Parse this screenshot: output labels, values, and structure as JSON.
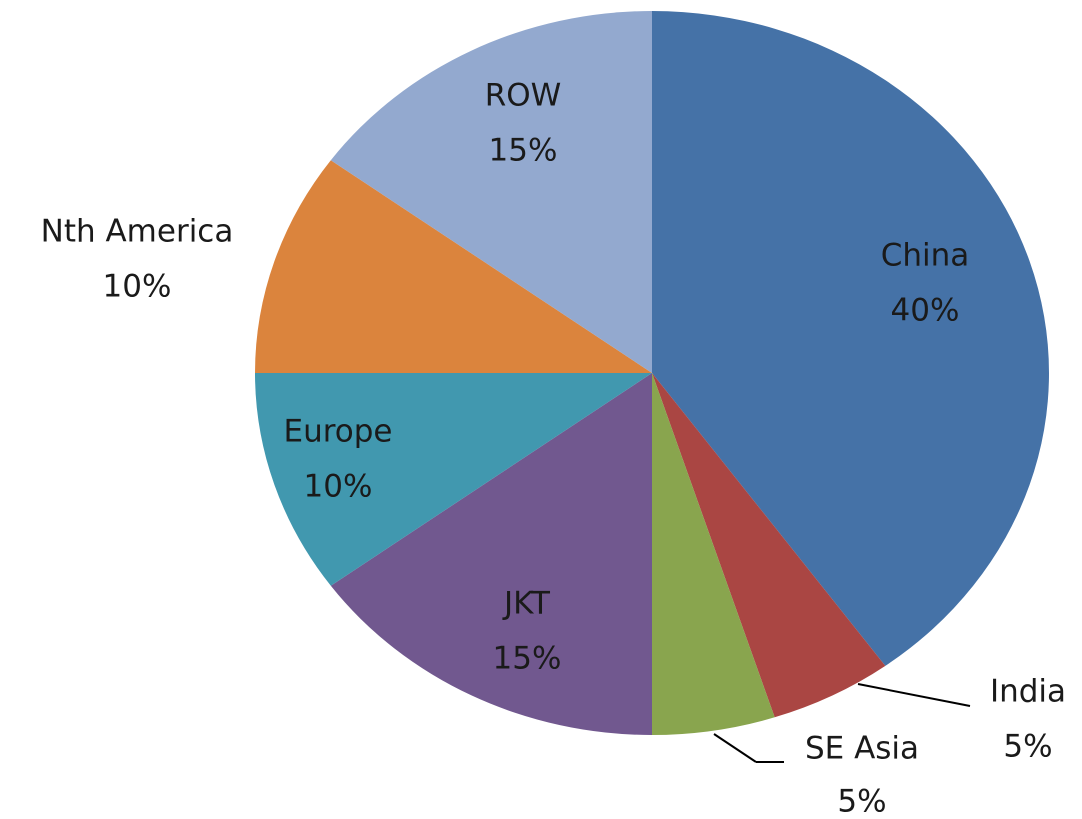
{
  "chart_data": {
    "type": "pie",
    "categories": [
      "China",
      "India",
      "SE Asia",
      "JKT",
      "Europe",
      "Nth America",
      "ROW"
    ],
    "values": [
      40,
      5,
      5,
      15,
      10,
      10,
      15
    ],
    "value_labels": [
      "40%",
      "5%",
      "5%",
      "15%",
      "10%",
      "10%",
      "15%"
    ],
    "colors": [
      "#4572a7",
      "#aa4643",
      "#89a54e",
      "#71588f",
      "#4198af",
      "#db843d",
      "#93a9cf"
    ]
  }
}
